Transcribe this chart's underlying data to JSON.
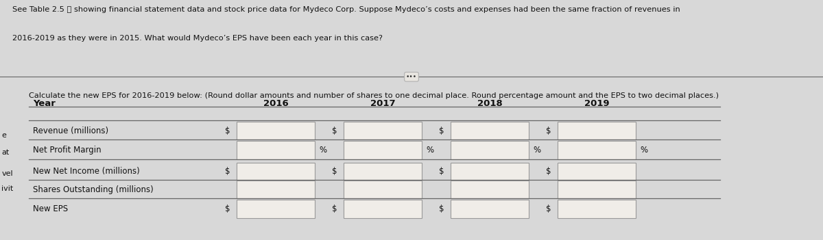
{
  "title_line1": "See Table 2.5  ⊠ showing financial statement data and stock price data for Mydeco Corp. Suppose Mydeco's costs and expenses had been the same fraction of revenues in",
  "title_line2": "2016-2019 as they were in 2015. What would Mydeco's EPS have been each year in this case?",
  "instruction": "Calculate the new EPS for 2016-2019 below: (Round dollar amounts and number of shares to one decimal place. Round percentage amount and the EPS to two decimal places.)",
  "years": [
    "2016",
    "2017",
    "2018",
    "2019"
  ],
  "row_labels": [
    "Year",
    "Revenue (millions)",
    "Net Profit Margin",
    "New Net Income (millions)",
    "Shares Outstanding (millions)",
    "New EPS"
  ],
  "left_margin_labels": [
    [
      "e",
      0.435
    ],
    [
      "at",
      0.365
    ],
    [
      "vel",
      0.275
    ],
    [
      "ivit",
      0.215
    ]
  ],
  "bg_color": "#d8d8d8",
  "box_fill": "#f0ede8",
  "box_edge": "#999999",
  "text_color": "#111111",
  "line_color": "#666666",
  "title_fontsize": 8.2,
  "table_fontsize": 8.5,
  "year_header_fontsize": 9.5
}
